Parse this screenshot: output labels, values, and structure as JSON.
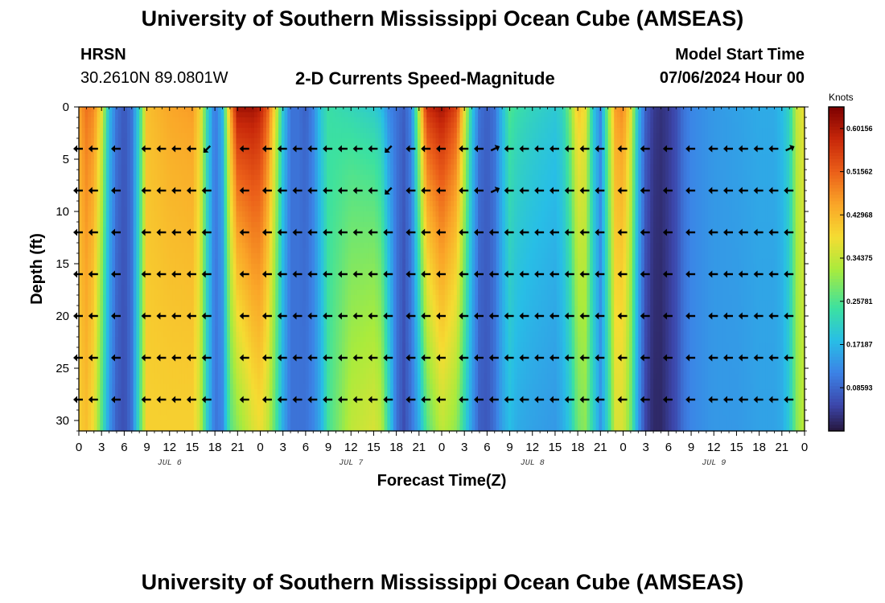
{
  "header": {
    "title": "University of Southern Mississippi Ocean Cube (AMSEAS)",
    "station": "HRSN",
    "coords": "30.2610N  89.0801W",
    "subtitle": "2-D Currents Speed-Magnitude",
    "model_start_label": "Model Start Time",
    "model_start_value": "07/06/2024 Hour 00"
  },
  "footer": {
    "title": "University of Southern Mississippi Ocean Cube (AMSEAS)"
  },
  "colors": {
    "background": "#ffffff",
    "arrow": "#000000"
  },
  "chart_data": {
    "type": "heatmap",
    "title": "2-D Currents Speed-Magnitude",
    "xlabel": "Forecast Time(Z)",
    "ylabel": "Depth (ft)",
    "x_range_hours": [
      0,
      96
    ],
    "y_range_ft": [
      0,
      31
    ],
    "x_tick_labels": [
      "0",
      "3",
      "6",
      "9",
      "12",
      "15",
      "18",
      "21",
      "0",
      "3",
      "6",
      "9",
      "12",
      "15",
      "18",
      "21",
      "0",
      "3",
      "6",
      "9",
      "12",
      "15",
      "18",
      "21",
      "0",
      "3",
      "6",
      "9",
      "12",
      "15",
      "18",
      "21",
      "0"
    ],
    "x_tick_hours": [
      0,
      3,
      6,
      9,
      12,
      15,
      18,
      21,
      24,
      27,
      30,
      33,
      36,
      39,
      42,
      45,
      48,
      51,
      54,
      57,
      60,
      63,
      66,
      69,
      72,
      75,
      78,
      81,
      84,
      87,
      90,
      93,
      96
    ],
    "day_labels": [
      {
        "text": "JUL 6",
        "hour": 12
      },
      {
        "text": "JUL 7",
        "hour": 36
      },
      {
        "text": "JUL 8",
        "hour": 60
      },
      {
        "text": "JUL 9",
        "hour": 84
      }
    ],
    "y_ticks": [
      0,
      5,
      10,
      15,
      20,
      25,
      30
    ],
    "colorbar": {
      "unit": "Knots",
      "min": 0.0,
      "max": 0.6444,
      "tick_labels": [
        "0.08593",
        "0.17187",
        "0.25781",
        "0.34375",
        "0.42968",
        "0.51562",
        "0.60156"
      ]
    },
    "speed_profile_time_hours": [
      0,
      1,
      2,
      3,
      4,
      5,
      6,
      7,
      8,
      9,
      12,
      15,
      16,
      17,
      18,
      19,
      20,
      21,
      23,
      24,
      25,
      26,
      27,
      28,
      29,
      30,
      31,
      32,
      33,
      36,
      39,
      40,
      41,
      42,
      43,
      44,
      45,
      46,
      48,
      50,
      51,
      52,
      53,
      54,
      55,
      56,
      57,
      58,
      60,
      63,
      64,
      65,
      66,
      67,
      68,
      69,
      70,
      71,
      72,
      73,
      74,
      75,
      76,
      77,
      78,
      79,
      80,
      81,
      84,
      87,
      90,
      92,
      93,
      94,
      95,
      96
    ],
    "speed_profile_surface_knots": [
      0.45,
      0.5,
      0.48,
      0.38,
      0.18,
      0.1,
      0.07,
      0.1,
      0.22,
      0.42,
      0.45,
      0.46,
      0.4,
      0.22,
      0.1,
      0.18,
      0.45,
      0.62,
      0.62,
      0.6,
      0.52,
      0.38,
      0.2,
      0.1,
      0.1,
      0.08,
      0.12,
      0.2,
      0.24,
      0.22,
      0.2,
      0.18,
      0.12,
      0.1,
      0.08,
      0.12,
      0.35,
      0.58,
      0.62,
      0.55,
      0.38,
      0.2,
      0.1,
      0.08,
      0.1,
      0.18,
      0.26,
      0.24,
      0.22,
      0.2,
      0.22,
      0.3,
      0.42,
      0.38,
      0.2,
      0.12,
      0.3,
      0.46,
      0.48,
      0.38,
      0.18,
      0.08,
      0.04,
      0.03,
      0.04,
      0.06,
      0.1,
      0.12,
      0.14,
      0.15,
      0.16,
      0.16,
      0.18,
      0.22,
      0.35,
      0.38
    ],
    "speed_profile_bottom_knots": [
      0.4,
      0.42,
      0.38,
      0.26,
      0.14,
      0.08,
      0.06,
      0.1,
      0.24,
      0.4,
      0.4,
      0.4,
      0.35,
      0.2,
      0.1,
      0.12,
      0.26,
      0.3,
      0.36,
      0.38,
      0.34,
      0.26,
      0.16,
      0.1,
      0.1,
      0.1,
      0.12,
      0.16,
      0.25,
      0.34,
      0.36,
      0.34,
      0.22,
      0.1,
      0.06,
      0.1,
      0.16,
      0.26,
      0.34,
      0.3,
      0.22,
      0.14,
      0.08,
      0.07,
      0.1,
      0.15,
      0.18,
      0.16,
      0.15,
      0.14,
      0.16,
      0.2,
      0.28,
      0.3,
      0.22,
      0.14,
      0.22,
      0.36,
      0.36,
      0.28,
      0.14,
      0.05,
      0.02,
      0.02,
      0.04,
      0.06,
      0.1,
      0.12,
      0.14,
      0.14,
      0.15,
      0.15,
      0.16,
      0.2,
      0.3,
      0.34
    ],
    "arrow_depths_ft": [
      4,
      8,
      12,
      16,
      20,
      24,
      28
    ],
    "arrow_times_hours": [
      0,
      2,
      5,
      9,
      11,
      13,
      15,
      17,
      22,
      25,
      27,
      29,
      31,
      33,
      35,
      37,
      39,
      41,
      44,
      46,
      48,
      51,
      53,
      55,
      57,
      59,
      61,
      63,
      65,
      67,
      69,
      72,
      75,
      78,
      81,
      84,
      86,
      88,
      90,
      92,
      94
    ],
    "arrow_direction": "westward (pointing left)",
    "arrow_exceptions": [
      {
        "hour": 17,
        "depth_ft": 4,
        "direction": "southwest"
      },
      {
        "hour": 41,
        "depth_ft": 4,
        "direction": "southwest"
      },
      {
        "hour": 41,
        "depth_ft": 8,
        "direction": "southwest"
      },
      {
        "hour": 55,
        "depth_ft": 4,
        "direction": "northeast"
      },
      {
        "hour": 55,
        "depth_ft": 8,
        "direction": "northeast"
      },
      {
        "hour": 94,
        "depth_ft": 4,
        "direction": "northeast"
      }
    ]
  }
}
